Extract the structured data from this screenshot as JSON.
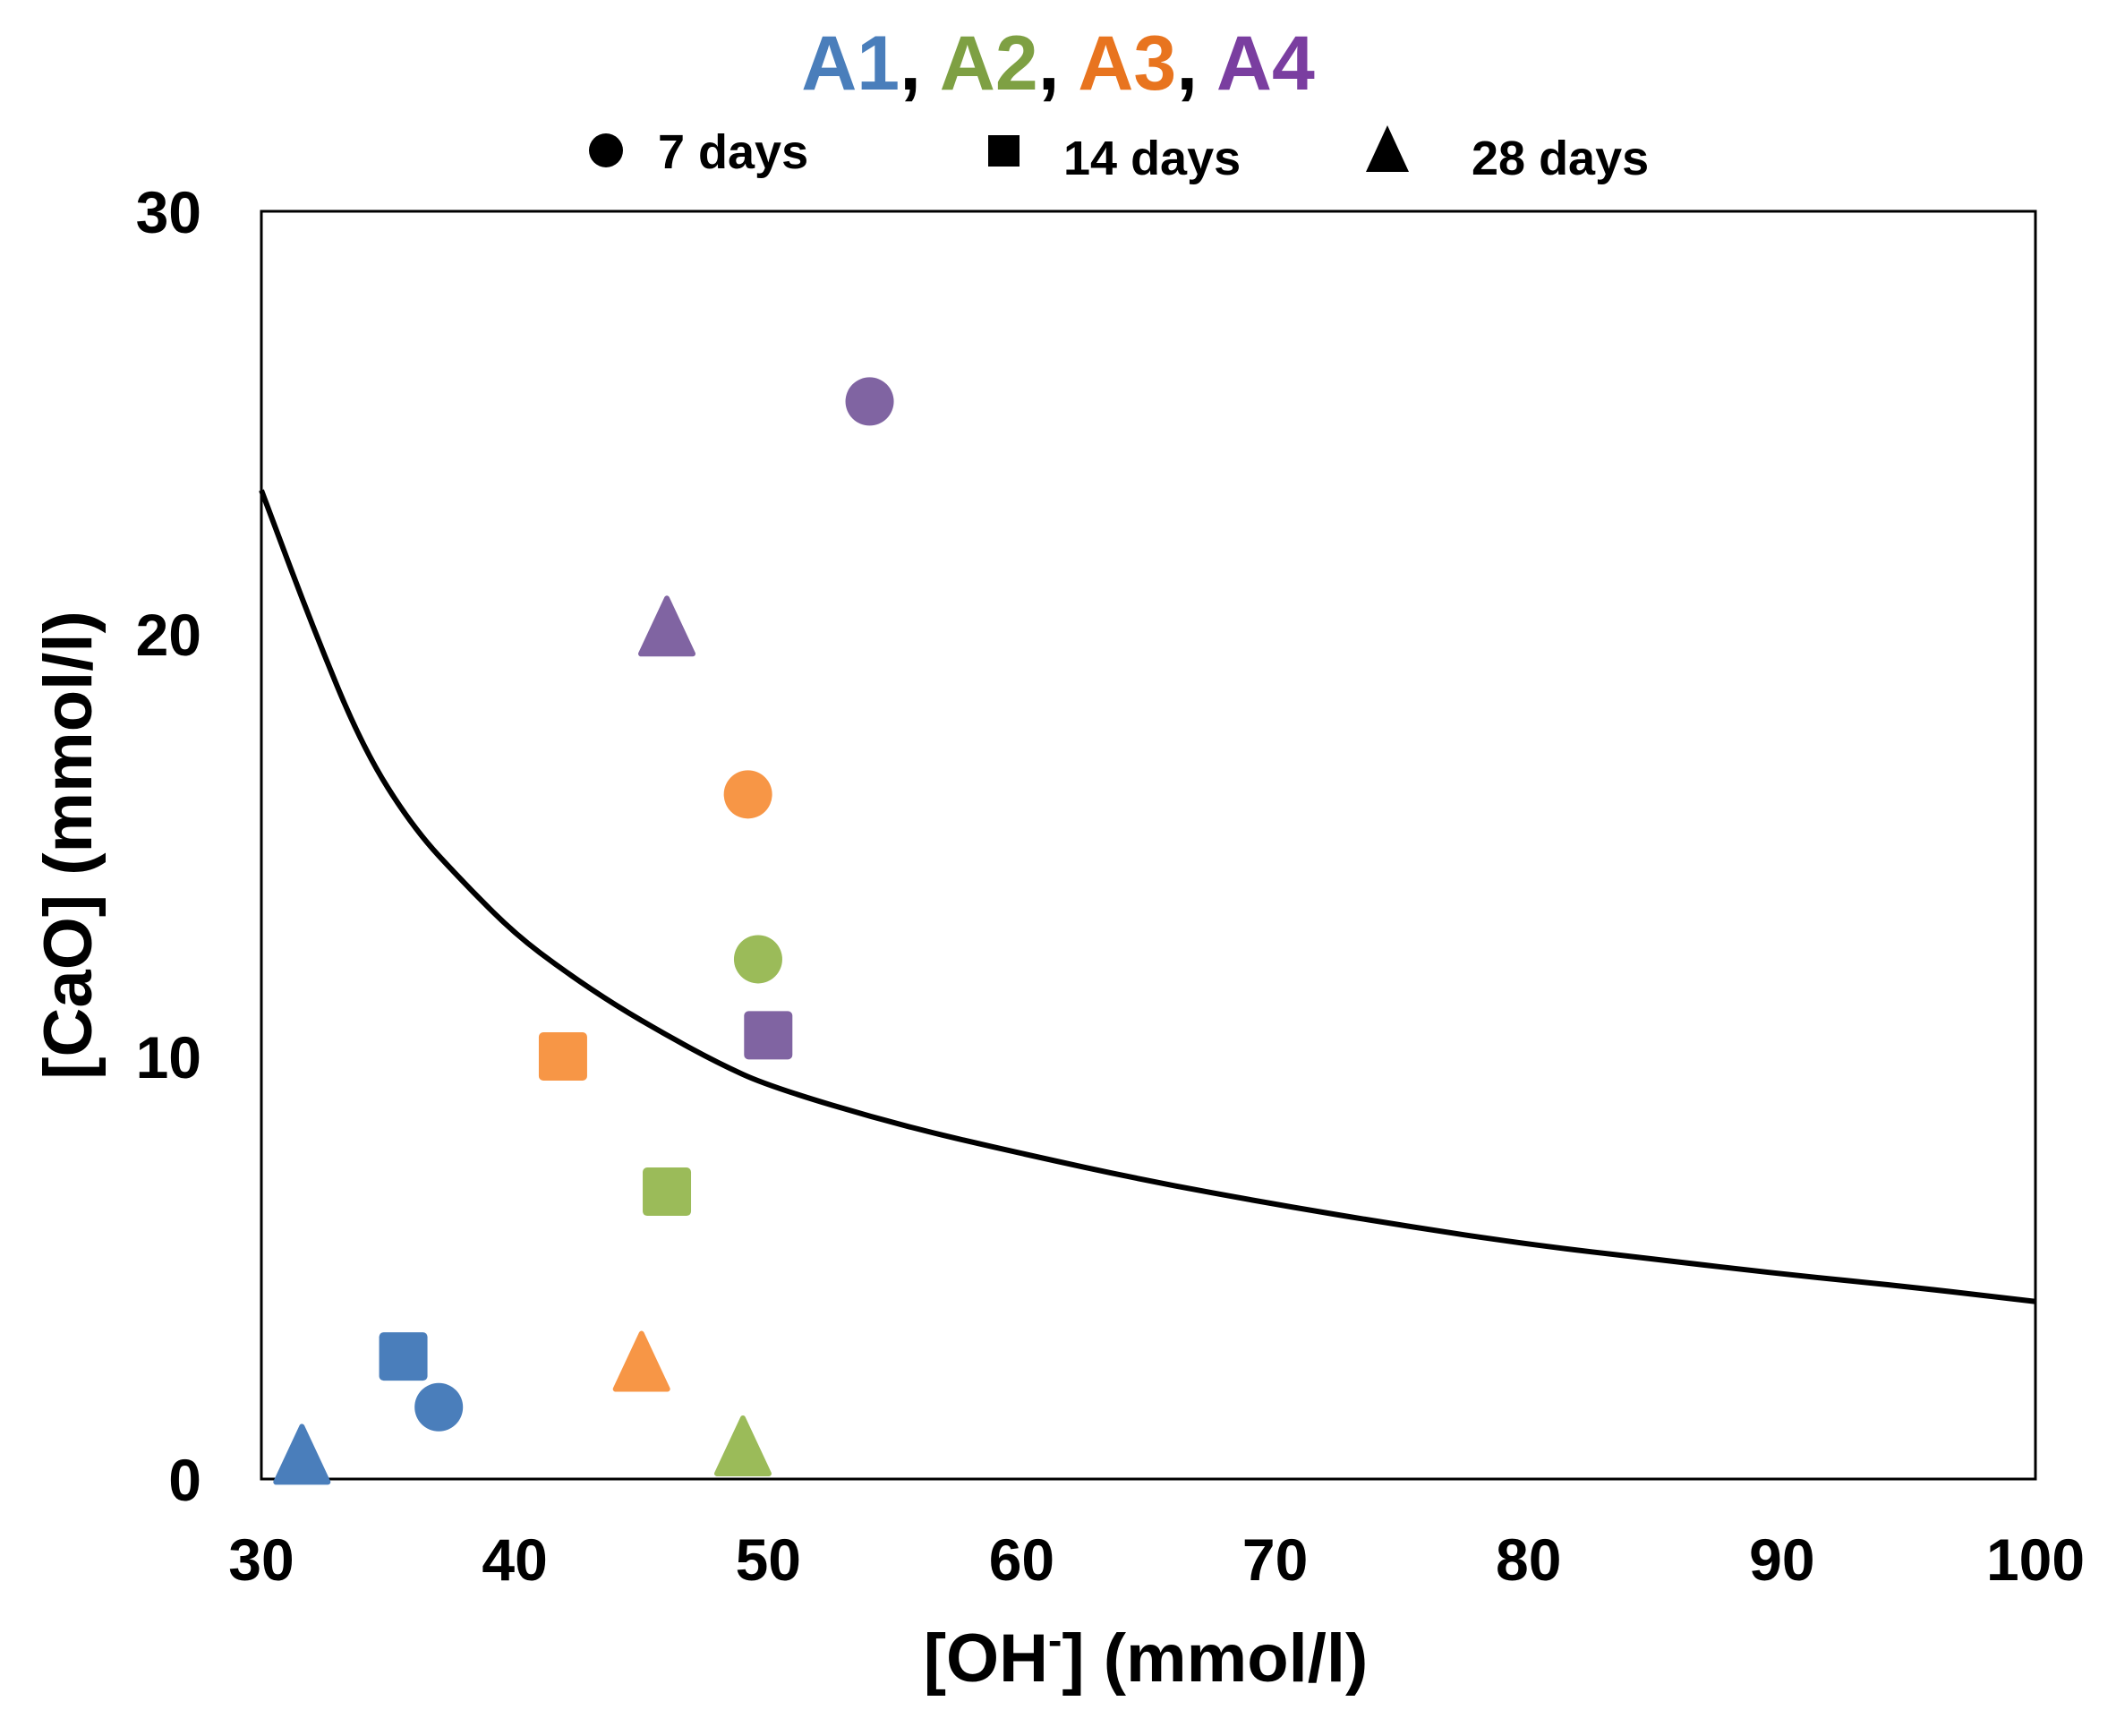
{
  "chart_data": {
    "type": "scatter",
    "title_series": [
      {
        "label": "A1",
        "color": "#4a7ebb"
      },
      {
        "label": "A2",
        "color": "#7ea043"
      },
      {
        "label": "A3",
        "color": "#e8741f"
      },
      {
        "label": "A4",
        "color": "#7a3ea0"
      }
    ],
    "title_separator": ",",
    "legend": [
      {
        "marker": "circle",
        "label": "7 days"
      },
      {
        "marker": "square",
        "label": "14 days"
      },
      {
        "marker": "triangle",
        "label": "28 days"
      }
    ],
    "xlabel": "[OH",
    "xlabel_sup": "-",
    "xlabel_rest": "] (mmol/l)",
    "ylabel": "[CaO] (mmol/l)",
    "xlim": [
      30,
      100
    ],
    "ylim": [
      0,
      30
    ],
    "xticks": [
      30,
      40,
      50,
      60,
      70,
      80,
      90,
      100
    ],
    "yticks": [
      0,
      10,
      20,
      30
    ],
    "grid": false,
    "series": [
      {
        "name": "A1",
        "color": "#4a7ebb",
        "points": [
          {
            "x": 37.0,
            "y": 1.7,
            "marker": "circle",
            "age": "7 days"
          },
          {
            "x": 35.6,
            "y": 2.9,
            "marker": "square",
            "age": "14 days"
          },
          {
            "x": 31.6,
            "y": 0.5,
            "marker": "triangle",
            "age": "28 days"
          }
        ]
      },
      {
        "name": "A2",
        "color": "#9bbb59",
        "points": [
          {
            "x": 49.6,
            "y": 12.3,
            "marker": "circle",
            "age": "7 days"
          },
          {
            "x": 46.0,
            "y": 6.8,
            "marker": "square",
            "age": "14 days"
          },
          {
            "x": 49.0,
            "y": 0.7,
            "marker": "triangle",
            "age": "28 days"
          }
        ]
      },
      {
        "name": "A3",
        "color": "#f79646",
        "points": [
          {
            "x": 49.2,
            "y": 16.2,
            "marker": "circle",
            "age": "7 days"
          },
          {
            "x": 41.9,
            "y": 10.0,
            "marker": "square",
            "age": "14 days"
          },
          {
            "x": 45.0,
            "y": 2.7,
            "marker": "triangle",
            "age": "28 days"
          }
        ]
      },
      {
        "name": "A4",
        "color": "#8064a2",
        "points": [
          {
            "x": 54.0,
            "y": 25.5,
            "marker": "circle",
            "age": "7 days"
          },
          {
            "x": 50.0,
            "y": 10.5,
            "marker": "square",
            "age": "14 days"
          },
          {
            "x": 46.0,
            "y": 20.1,
            "marker": "triangle",
            "age": "28 days"
          }
        ]
      }
    ],
    "curve": {
      "name": "solubility-curve",
      "color": "#000000",
      "x": [
        30,
        32,
        34,
        36,
        38,
        40,
        42,
        44,
        46,
        48,
        50,
        55,
        60,
        65,
        70,
        75,
        80,
        85,
        90,
        95,
        100
      ],
      "y": [
        23.4,
        20.2,
        17.3,
        15.4,
        14.1,
        12.9,
        12.0,
        11.2,
        10.5,
        9.85,
        9.3,
        8.4,
        7.7,
        7.05,
        6.5,
        6.0,
        5.55,
        5.2,
        4.85,
        4.55,
        4.2
      ]
    }
  }
}
